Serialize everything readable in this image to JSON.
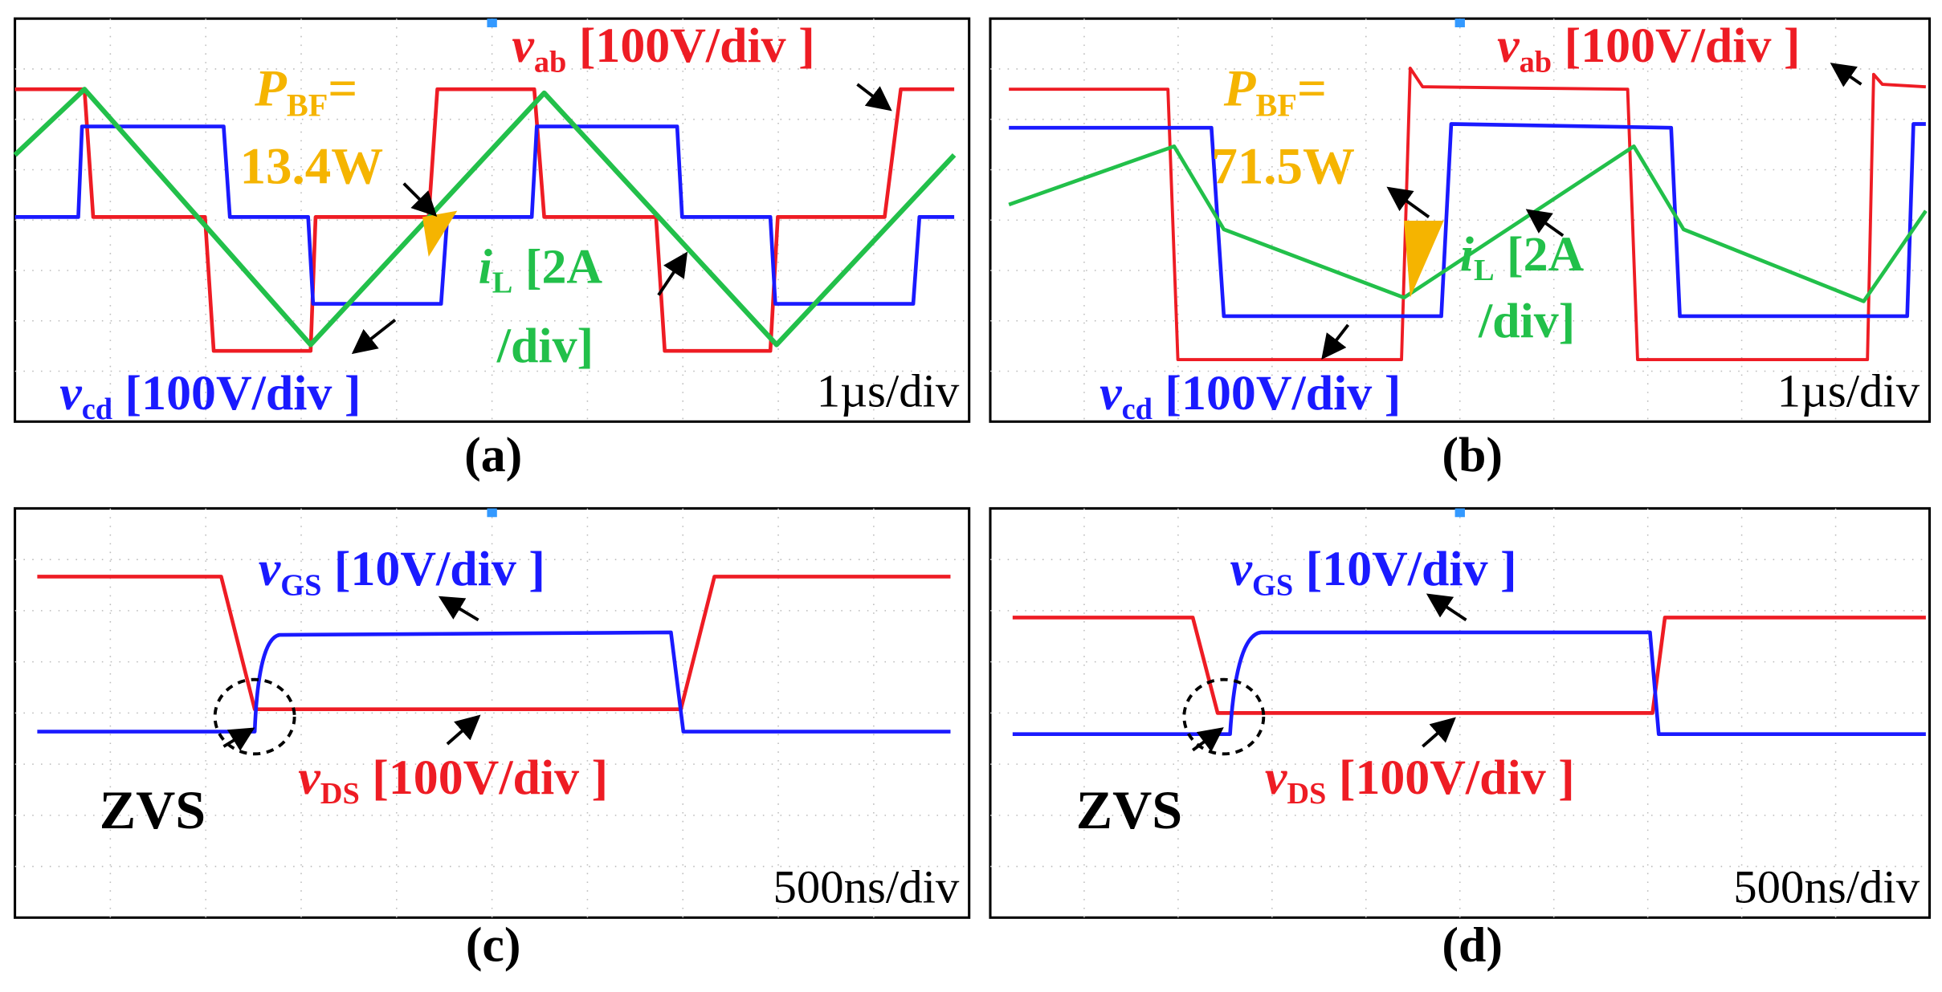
{
  "panels": [
    {
      "label": "(a)",
      "timebase": "1µs/div",
      "signals": [
        {
          "symbol": "v",
          "subscript": "ab",
          "scale": "[100V/div ]"
        },
        {
          "symbol": "v",
          "subscript": "cd",
          "scale": "[100V/div ]"
        },
        {
          "symbol": "i",
          "subscript": "L",
          "scale": [
            "[2A",
            "/div]"
          ]
        }
      ],
      "power": {
        "symbol": "P",
        "subscript": "BF",
        "equals": "=",
        "value": "13.4W"
      }
    },
    {
      "label": "(b)",
      "timebase": "1µs/div",
      "signals": [
        {
          "symbol": "v",
          "subscript": "ab",
          "scale": "[100V/div ]"
        },
        {
          "symbol": "v",
          "subscript": "cd",
          "scale": "[100V/div ]"
        },
        {
          "symbol": "i",
          "subscript": "L",
          "scale": [
            "[2A",
            "/div]"
          ]
        }
      ],
      "power": {
        "symbol": "P",
        "subscript": "BF",
        "equals": "=",
        "value": "71.5W"
      }
    },
    {
      "label": "(c)",
      "timebase": "500ns/div",
      "signals": [
        {
          "symbol": "v",
          "subscript": "GS",
          "scale": "[10V/div ]"
        },
        {
          "symbol": "v",
          "subscript": "DS",
          "scale": "[100V/div ]"
        }
      ],
      "annotation": "ZVS"
    },
    {
      "label": "(d)",
      "timebase": "500ns/div",
      "signals": [
        {
          "symbol": "v",
          "subscript": "GS",
          "scale": "[10V/div ]"
        },
        {
          "symbol": "v",
          "subscript": "DS",
          "scale": "[100V/div ]"
        }
      ],
      "annotation": "ZVS"
    }
  ]
}
